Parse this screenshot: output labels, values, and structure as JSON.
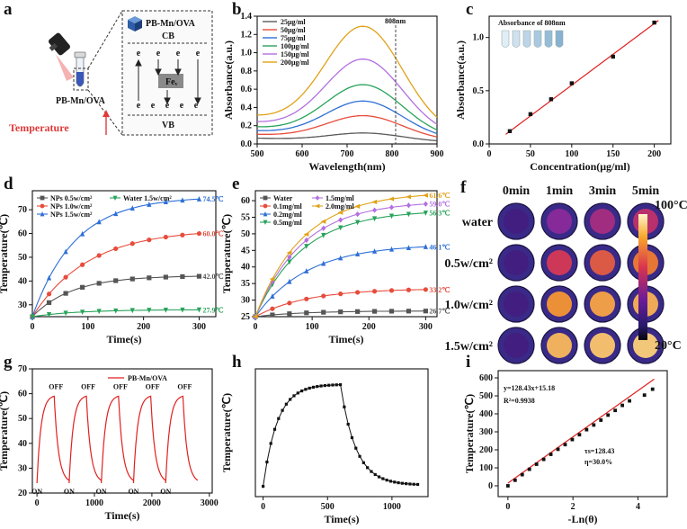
{
  "panels": {
    "a": {
      "label": "a",
      "material": "PB-Mn/OVA",
      "material_top": "PB-Mn/OVA",
      "cb": "CB",
      "vb": "VB",
      "fe": "Feᵥ",
      "electron": "e",
      "temperature": "Temperature"
    },
    "f": {
      "label": "f",
      "col_headers": [
        "0min",
        "1min",
        "3min",
        "5min"
      ],
      "row_headers": [
        "water",
        "0.5w/cm²",
        "1.0w/cm²",
        "1.5w/cm²"
      ],
      "scale_max": "100°C",
      "scale_min": "20°C",
      "intensity": [
        [
          0.08,
          0.3,
          0.38,
          0.45
        ],
        [
          0.08,
          0.52,
          0.62,
          0.7
        ],
        [
          0.08,
          0.78,
          0.82,
          0.86
        ],
        [
          0.08,
          0.88,
          0.92,
          0.95
        ]
      ]
    }
  },
  "chart_data": [
    {
      "id": "b",
      "label": "b",
      "type": "line",
      "xlabel": "Wavelength(nm)",
      "ylabel": "Absorbance(a.u.)",
      "xlim": [
        500,
        900
      ],
      "ylim": [
        0,
        1.4
      ],
      "xticks": [
        500,
        600,
        700,
        800,
        900
      ],
      "yticks": [
        0.0,
        0.2,
        0.4,
        0.6,
        0.8,
        1.0,
        1.2,
        1.4
      ],
      "annotation": "808nm",
      "series": [
        {
          "name": "25μg/ml",
          "color": "#5a5a5a",
          "peak": 0.12,
          "base": 0.05
        },
        {
          "name": "50μg/ml",
          "color": "#e74c3c",
          "peak": 0.31,
          "base": 0.08
        },
        {
          "name": "75μg/ml",
          "color": "#2e6fd6",
          "peak": 0.47,
          "base": 0.11
        },
        {
          "name": "100μg/ml",
          "color": "#27a35a",
          "peak": 0.65,
          "base": 0.14
        },
        {
          "name": "150μg/ml",
          "color": "#b36fe0",
          "peak": 0.93,
          "base": 0.18
        },
        {
          "name": "200μg/ml",
          "color": "#e0a218",
          "peak": 1.29,
          "base": 0.23
        }
      ]
    },
    {
      "id": "c",
      "label": "c",
      "type": "scatter",
      "title": "Absorbance of 808nm",
      "xlabel": "Concentration(μg/ml)",
      "ylabel": "Absorbance(a.u.)",
      "xlim": [
        0,
        220
      ],
      "ylim": [
        0,
        1.2
      ],
      "xticks": [
        0,
        50,
        100,
        150,
        200
      ],
      "yticks": [
        0.0,
        0.5,
        1.0
      ],
      "x": [
        25,
        50,
        75,
        100,
        150,
        200
      ],
      "y": [
        0.12,
        0.28,
        0.42,
        0.57,
        0.82,
        1.14
      ],
      "fit": [
        [
          20,
          0.09
        ],
        [
          205,
          1.16
        ]
      ]
    },
    {
      "id": "d",
      "label": "d",
      "type": "line",
      "xlabel": "Time(s)",
      "ylabel": "Temperature(℃)",
      "xlim": [
        0,
        330
      ],
      "ylim": [
        25,
        78
      ],
      "xticks": [
        0,
        100,
        200,
        300
      ],
      "yticks": [
        30,
        40,
        50,
        60,
        70
      ],
      "series": [
        {
          "name": "NPs 0.5w/cm²",
          "color": "#555555",
          "marker": "square",
          "start": 25,
          "end": 42.0,
          "k": 0.014,
          "label": "42.0℃"
        },
        {
          "name": "NPs 1.0w/cm²",
          "color": "#e74c3c",
          "marker": "circle",
          "start": 25,
          "end": 60.0,
          "k": 0.01,
          "label": "60.0℃"
        },
        {
          "name": "NPs 1.5w/cm²",
          "color": "#2e6fd6",
          "marker": "triangle",
          "start": 25,
          "end": 74.5,
          "k": 0.013,
          "label": "74.5℃"
        },
        {
          "name": "Water 1.5w/cm²",
          "color": "#27a35a",
          "marker": "tri-down",
          "start": 25,
          "end": 27.9,
          "k": 0.012,
          "label": "27.9℃"
        }
      ]
    },
    {
      "id": "e",
      "label": "e",
      "type": "line",
      "xlabel": "Time(s)",
      "ylabel": "Temperature(℃)",
      "xlim": [
        0,
        320
      ],
      "ylim": [
        25,
        63
      ],
      "xticks": [
        0,
        100,
        200,
        300
      ],
      "yticks": [
        25,
        30,
        35,
        40,
        45,
        50,
        55,
        60
      ],
      "series": [
        {
          "name": "Water",
          "color": "#555555",
          "marker": "square",
          "start": 25,
          "end": 26.7,
          "k": 0.012,
          "label": "26.7℃"
        },
        {
          "name": "0.1mg/ml",
          "color": "#e74c3c",
          "marker": "circle",
          "start": 25,
          "end": 33.2,
          "k": 0.011,
          "label": "33.2℃"
        },
        {
          "name": "0.2mg/ml",
          "color": "#2e6fd6",
          "marker": "triangle",
          "start": 25,
          "end": 46.1,
          "k": 0.011,
          "label": "46.1℃"
        },
        {
          "name": "0.5mg/ml",
          "color": "#27a35a",
          "marker": "tri-down",
          "start": 25,
          "end": 56.3,
          "k": 0.012,
          "label": "56.3℃"
        },
        {
          "name": "1.5mg/ml",
          "color": "#b36fe0",
          "marker": "diamond",
          "start": 25,
          "end": 59.0,
          "k": 0.012,
          "label": "59.0℃"
        },
        {
          "name": "2.0mg/ml",
          "color": "#e0a218",
          "marker": "tri-left",
          "start": 25,
          "end": 61.6,
          "k": 0.012,
          "label": "61.6℃"
        }
      ]
    },
    {
      "id": "g",
      "label": "g",
      "type": "line",
      "xlabel": "Time(s)",
      "ylabel": "Temperature(℃)",
      "legend": "PB-Mn/OVA",
      "xlim": [
        -80,
        3050
      ],
      "ylim": [
        20,
        70
      ],
      "xticks": [
        0,
        1000,
        2000,
        3000
      ],
      "yticks": [
        20,
        30,
        40,
        50,
        60,
        70
      ],
      "cycles": 5,
      "cycle_length": 560,
      "heat_time": 300,
      "t_max": 59,
      "t_min": 24,
      "on_label": "ON",
      "off_label": "OFF"
    },
    {
      "id": "h",
      "label": "h",
      "type": "line",
      "xlabel": "Time(s)",
      "ylabel": "Temperature(℃)",
      "xlim": [
        -60,
        1280
      ],
      "ylim": [
        20,
        70
      ],
      "xticks": [
        0,
        500,
        1000
      ],
      "heat_end": 600,
      "t_start": 24,
      "t_max": 63.8,
      "t_end": 24.5,
      "dt": 30
    },
    {
      "id": "i",
      "label": "i",
      "type": "scatter",
      "xlabel": "-Ln(θ)",
      "ylabel": "Temperature(℃)",
      "xlim": [
        -0.3,
        4.9
      ],
      "ylim": [
        -60,
        640
      ],
      "xticks": [
        0,
        2,
        4
      ],
      "yticks": [
        0,
        100,
        200,
        300,
        400,
        500,
        600
      ],
      "equation": "y=128.43x+15.18",
      "r2": "R²=0.9938",
      "tau": "τs=128.43",
      "eta": "η=30.0%",
      "x": [
        0.0,
        0.22,
        0.44,
        0.66,
        0.88,
        1.1,
        1.32,
        1.54,
        1.76,
        1.98,
        2.2,
        2.42,
        2.64,
        2.86,
        3.08,
        3.3,
        3.52,
        3.74,
        4.2,
        4.45
      ],
      "y": [
        0,
        31,
        62,
        92,
        120,
        147,
        175,
        203,
        229,
        257,
        284,
        312,
        338,
        365,
        393,
        419,
        447,
        472,
        504,
        537
      ],
      "fit": [
        [
          0.0,
          15.18
        ],
        [
          4.5,
          593.1
        ]
      ]
    }
  ]
}
